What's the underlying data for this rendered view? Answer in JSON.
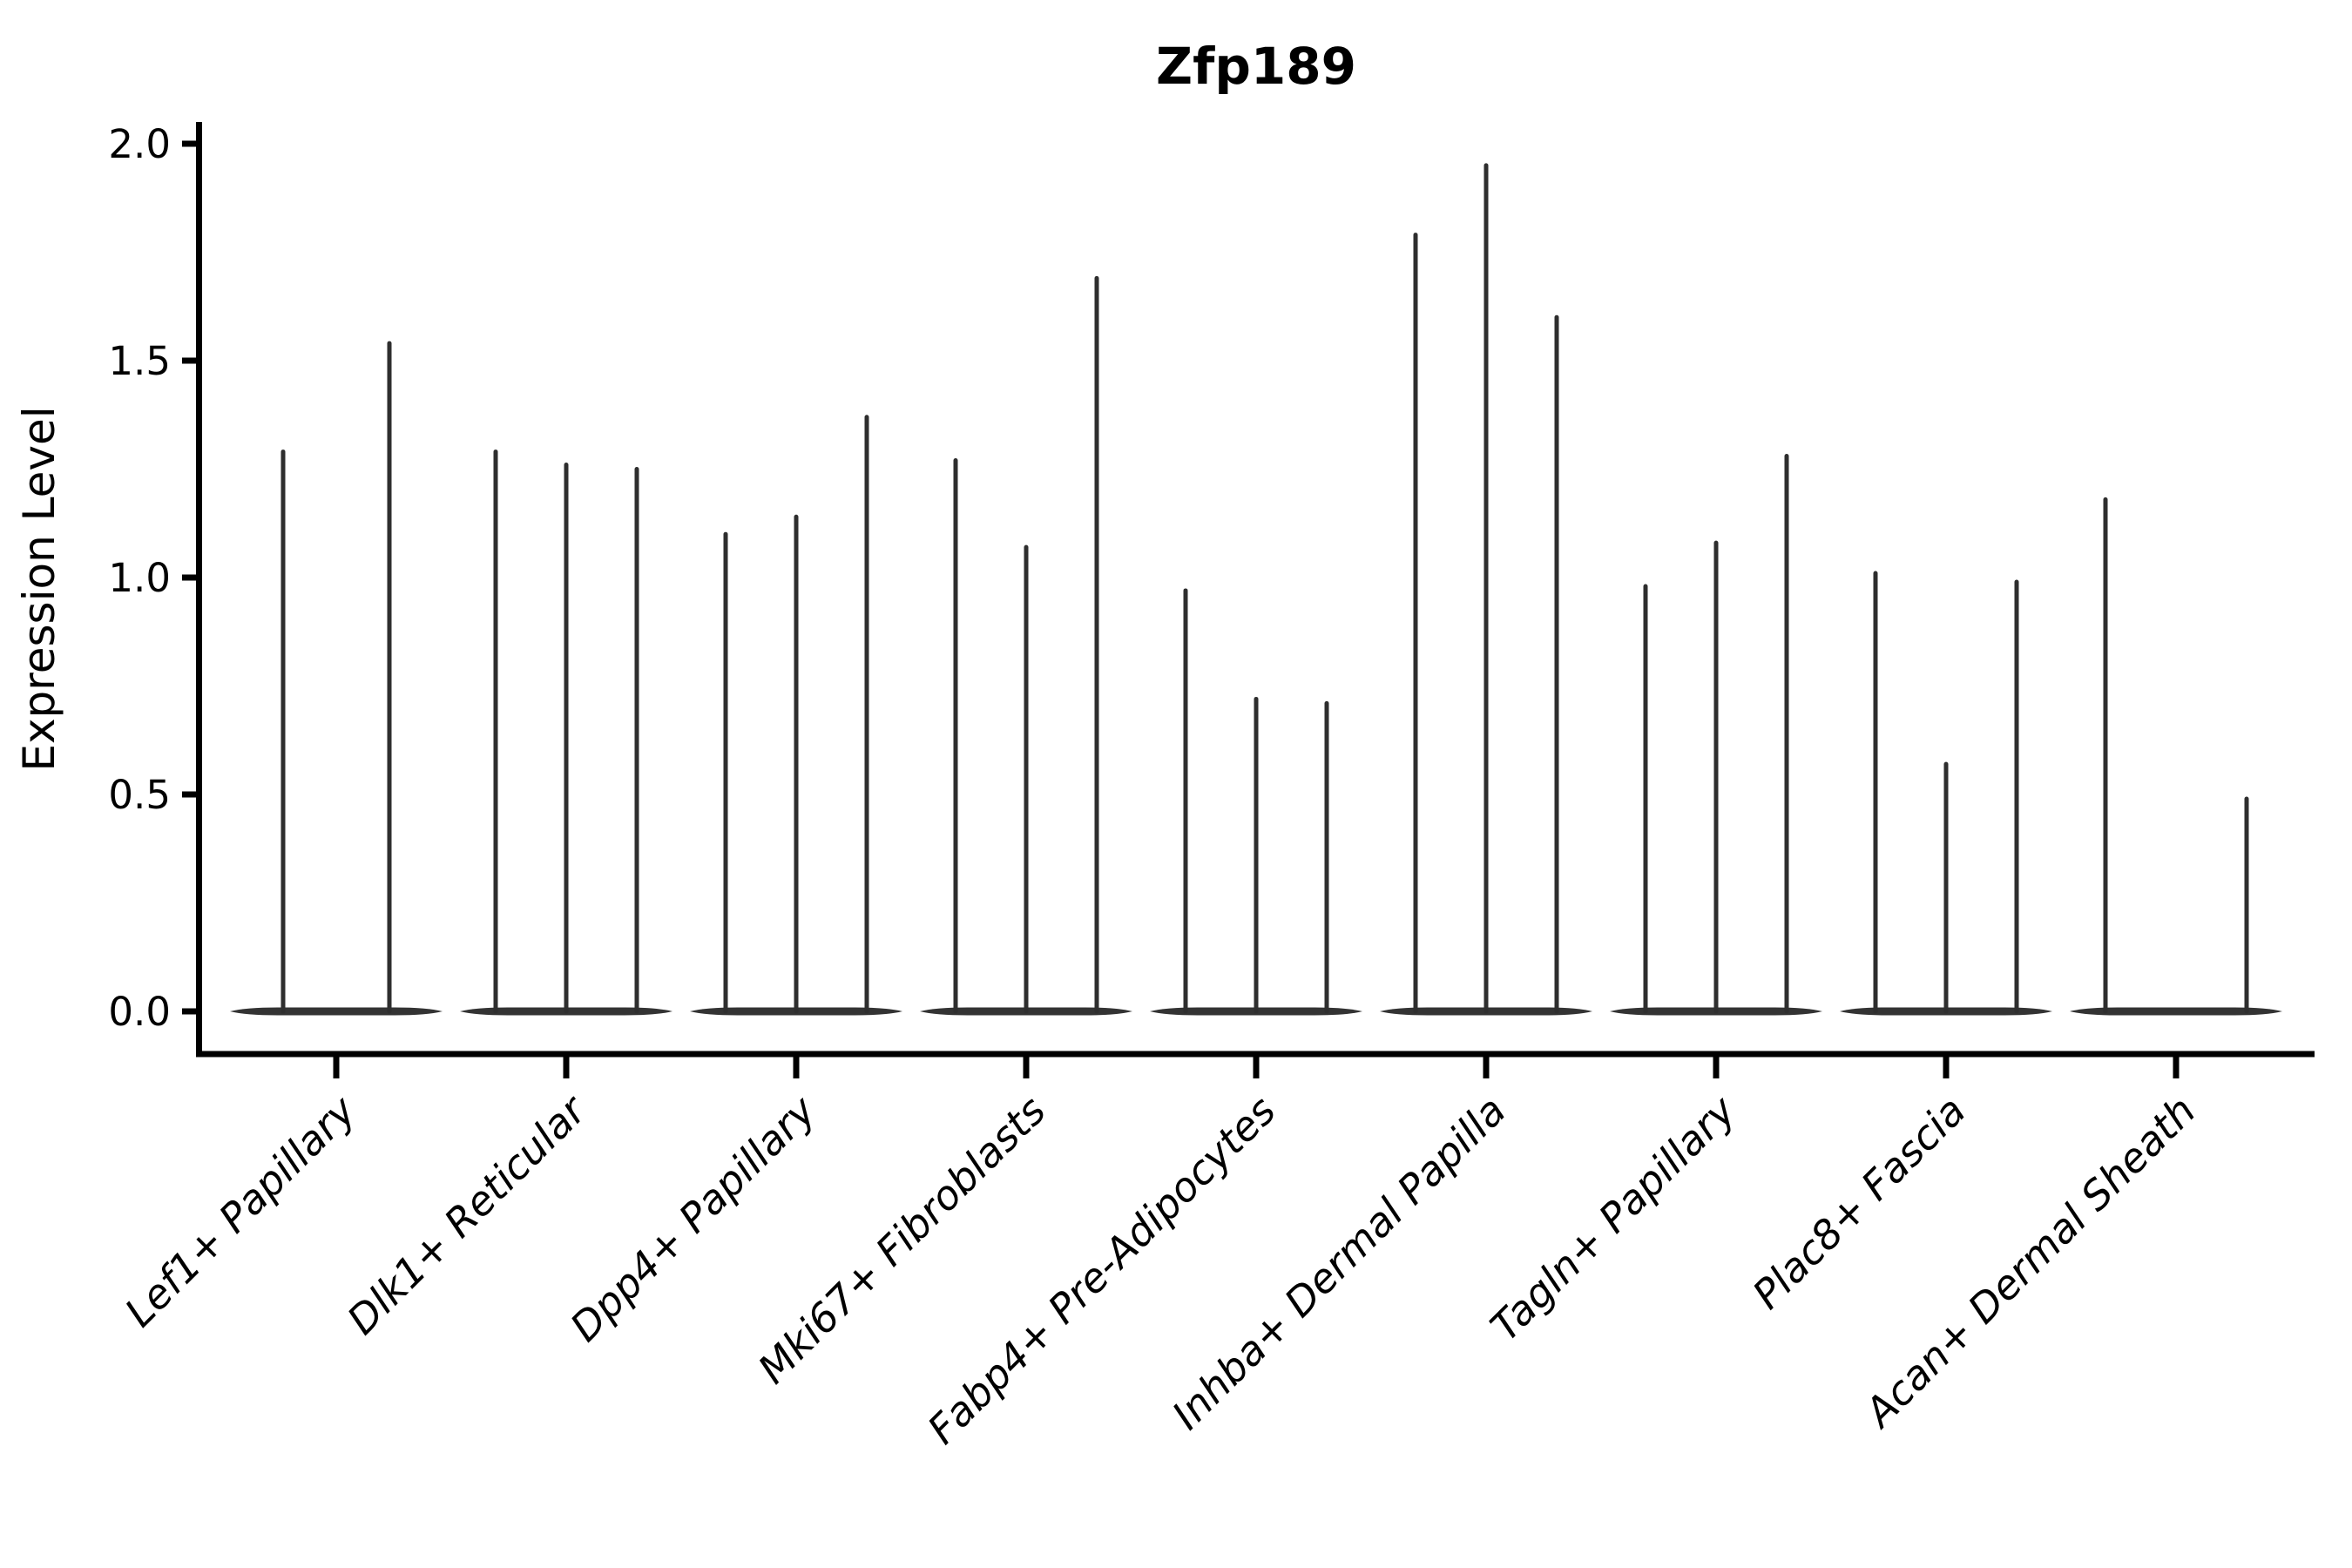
{
  "title": "Zfp189",
  "axes": {
    "ylabel": "Expression Level",
    "ytick_labels": [
      "0.0",
      "0.5",
      "1.0",
      "1.5",
      "2.0"
    ]
  },
  "chart_data": {
    "type": "violin",
    "title": "Zfp189",
    "xlabel": "",
    "ylabel": "Expression Level",
    "ylim": [
      -0.1,
      2.05
    ],
    "yticks": [
      0.0,
      0.5,
      1.0,
      1.5,
      2.0
    ],
    "grid": false,
    "legend": "none",
    "style_note": "collapsed spike violins: wide flat base at 0 with thin vertical spike to max expression",
    "categories": [
      "Lef1+ Papillary",
      "Dlk1+ Reticular",
      "Dpp4+ Papillary",
      "Mki67+ Fibroblasts",
      "Fabp4+ Pre-Adipocytes",
      "Inhba+ Dermal Papilla",
      "Tagln+ Papillary",
      "Plac8+ Fascia",
      "Acan+ Dermal Sheath"
    ],
    "groups": [
      {
        "label": "Lef1+ Papillary",
        "violin_max_values": [
          1.29,
          1.54
        ]
      },
      {
        "label": "Dlk1+ Reticular",
        "violin_max_values": [
          1.29,
          1.26,
          1.25
        ]
      },
      {
        "label": "Dpp4+ Papillary",
        "violin_max_values": [
          1.1,
          1.14,
          1.37
        ]
      },
      {
        "label": "Mki67+ Fibroblasts",
        "violin_max_values": [
          1.27,
          1.07,
          1.69
        ]
      },
      {
        "label": "Fabp4+ Pre-Adipocytes",
        "violin_max_values": [
          0.97,
          0.72,
          0.71
        ]
      },
      {
        "label": "Inhba+ Dermal Papilla",
        "violin_max_values": [
          1.79,
          1.95,
          1.6
        ]
      },
      {
        "label": "Tagln+ Papillary",
        "violin_max_values": [
          0.98,
          1.08,
          1.28
        ]
      },
      {
        "label": "Plac8+ Fascia",
        "violin_max_values": [
          1.01,
          0.57,
          0.99
        ]
      },
      {
        "label": "Acan+ Dermal Sheath",
        "violin_max_values": [
          1.18,
          0.0,
          0.49
        ]
      }
    ],
    "colors": {
      "violin": "#2e2e2e",
      "baseline": "#333333",
      "axis": "#000000",
      "text": "#000000",
      "background": "#ffffff"
    }
  }
}
